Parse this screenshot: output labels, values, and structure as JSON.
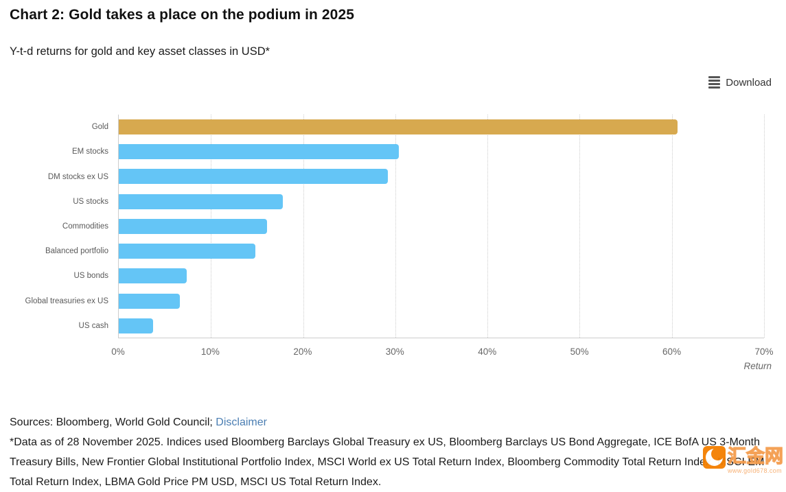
{
  "page": {
    "title": "Chart 2: Gold takes a place on the podium in 2025",
    "subtitle": "Y-t-d returns for gold and key asset classes in USD*"
  },
  "toolbar": {
    "download_label": "Download"
  },
  "chart_data": {
    "type": "bar",
    "orientation": "horizontal",
    "categories": [
      "Gold",
      "EM stocks",
      "DM stocks ex US",
      "US stocks",
      "Commodities",
      "Balanced portfolio",
      "US bonds",
      "Global treasuries ex US",
      "US cash"
    ],
    "values": [
      60.6,
      30.4,
      29.2,
      17.8,
      16.1,
      14.8,
      7.4,
      6.6,
      3.7
    ],
    "bar_colors": [
      "#D7A94F",
      "#64C5F6",
      "#64C5F6",
      "#64C5F6",
      "#64C5F6",
      "#64C5F6",
      "#64C5F6",
      "#64C5F6",
      "#64C5F6"
    ],
    "title": "Chart 2: Gold takes a place on the podium in 2025",
    "subtitle": "Y-t-d returns for gold and key asset classes in USD*",
    "xlabel": "Return",
    "ylabel": "",
    "xlim": [
      0,
      70
    ],
    "x_tick_labels": [
      "0%",
      "10%",
      "20%",
      "30%",
      "40%",
      "50%",
      "60%",
      "70%"
    ],
    "grid": "vertical dotted gridlines every 10%",
    "legend": "none",
    "value_unit": "%"
  },
  "footer": {
    "sources_prefix": "Sources: Bloomberg, World Gold Council; ",
    "disclaimer_link": "Disclaimer",
    "footnote": "*Data as of 28 November 2025. Indices used Bloomberg Barclays Global Treasury ex US, Bloomberg Barclays US Bond Aggregate, ICE BofA US 3-Month Treasury Bills, New Frontier Global Institutional Portfolio Index, MSCI World ex US Total Return Index, Bloomberg Commodity Total Return Index, MSCI EM Total Return Index, LBMA Gold Price PM USD, MSCI US Total Return Index."
  },
  "watermark": {
    "site_name": "汇金网",
    "site_url": "www.gold678.com"
  },
  "colors": {
    "gold_bar": "#D7A94F",
    "blue_bar": "#64C5F6",
    "axis": "#cccccc",
    "link": "#4a7db2",
    "watermark_orange": "#f47f00"
  }
}
